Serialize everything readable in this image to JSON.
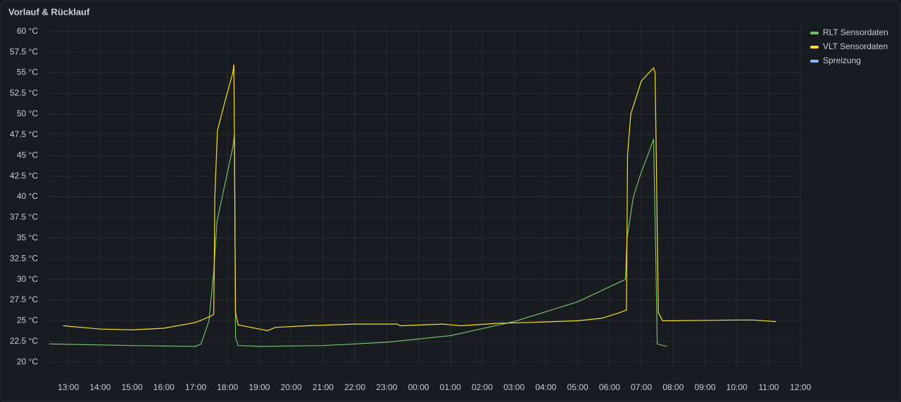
{
  "chart_data": {
    "type": "line",
    "title": "Vorlauf & Rücklauf",
    "xlim": [
      "12:20",
      "12:01"
    ],
    "xticks": [
      "13:00",
      "14:00",
      "15:00",
      "16:00",
      "17:00",
      "18:00",
      "19:00",
      "20:00",
      "21:00",
      "22:00",
      "23:00",
      "00:00",
      "01:00",
      "02:00",
      "03:00",
      "04:00",
      "05:00",
      "06:00",
      "07:00",
      "08:00",
      "09:00",
      "10:00",
      "11:00",
      "12:00"
    ],
    "ylim": [
      19,
      61
    ],
    "yticks": [
      {
        "value": 20,
        "label": "20 °C"
      },
      {
        "value": 22.5,
        "label": "22.5 °C"
      },
      {
        "value": 25,
        "label": "25 °C"
      },
      {
        "value": 27.5,
        "label": "27.5 °C"
      },
      {
        "value": 30,
        "label": "30 °C"
      },
      {
        "value": 32.5,
        "label": "32.5 °C"
      },
      {
        "value": 35,
        "label": "35 °C"
      },
      {
        "value": 37.5,
        "label": "37.5 °C"
      },
      {
        "value": 40,
        "label": "40 °C"
      },
      {
        "value": 42.5,
        "label": "42.5 °C"
      },
      {
        "value": 45,
        "label": "45 °C"
      },
      {
        "value": 47.5,
        "label": "47.5 °C"
      },
      {
        "value": 50,
        "label": "50 °C"
      },
      {
        "value": 52.5,
        "label": "52.5 °C"
      },
      {
        "value": 55,
        "label": "55 °C"
      },
      {
        "value": 57.5,
        "label": "57.5 °C"
      },
      {
        "value": 60,
        "label": "60 °C"
      }
    ],
    "grid": true,
    "legend": "right",
    "series": [
      {
        "name": "RLT Sensordaten",
        "color": "#73bf69",
        "x": [
          "12:24",
          "15:00",
          "17:00",
          "17:10",
          "17:25",
          "17:34",
          "17:40",
          "17:50",
          "18:00",
          "18:10",
          "18:13",
          "18:15",
          "18:20",
          "19:00",
          "21:00",
          "23:00",
          "01:00",
          "03:00",
          "05:00",
          "06:30",
          "06:33",
          "06:45",
          "07:00",
          "07:15",
          "07:23",
          "07:28",
          "07:30",
          "07:48"
        ],
        "values": [
          22.2,
          22.0,
          21.9,
          22.2,
          25,
          31,
          37,
          40,
          43,
          46,
          47.5,
          23,
          22.0,
          21.9,
          22.0,
          22.4,
          23.2,
          24.9,
          27.3,
          30.0,
          35,
          40,
          43,
          45.5,
          47,
          30,
          22.2,
          21.9
        ]
      },
      {
        "name": "VLT Sensordaten",
        "color": "#fade2a",
        "x": [
          "12:50",
          "14:00",
          "15:00",
          "16:00",
          "17:00",
          "17:30",
          "17:34",
          "17:36",
          "17:41",
          "17:57",
          "18:10",
          "18:12",
          "18:15",
          "18:20",
          "19:00",
          "19:15",
          "19:30",
          "20:30",
          "22:00",
          "23:20",
          "23:25",
          "00:45",
          "01:20",
          "02:30",
          "03:30",
          "05:00",
          "05:45",
          "06:20",
          "06:32",
          "06:34",
          "06:40",
          "07:00",
          "07:23",
          "07:26",
          "07:32",
          "07:40",
          "08:00",
          "10:00",
          "10:30",
          "11:14"
        ],
        "values": [
          24.4,
          24.0,
          23.9,
          24.1,
          24.8,
          25.6,
          25.8,
          40,
          48,
          52,
          55,
          56,
          26,
          24.5,
          24.0,
          23.8,
          24.2,
          24.4,
          24.6,
          24.6,
          24.4,
          24.6,
          24.4,
          24.7,
          24.8,
          25.0,
          25.3,
          26.0,
          26.3,
          45,
          50,
          54,
          55.6,
          55,
          26,
          25,
          25,
          25.1,
          25.1,
          24.9
        ]
      },
      {
        "name": "Spreizung",
        "color": "#8ab8ff",
        "x": [],
        "values": []
      }
    ]
  }
}
